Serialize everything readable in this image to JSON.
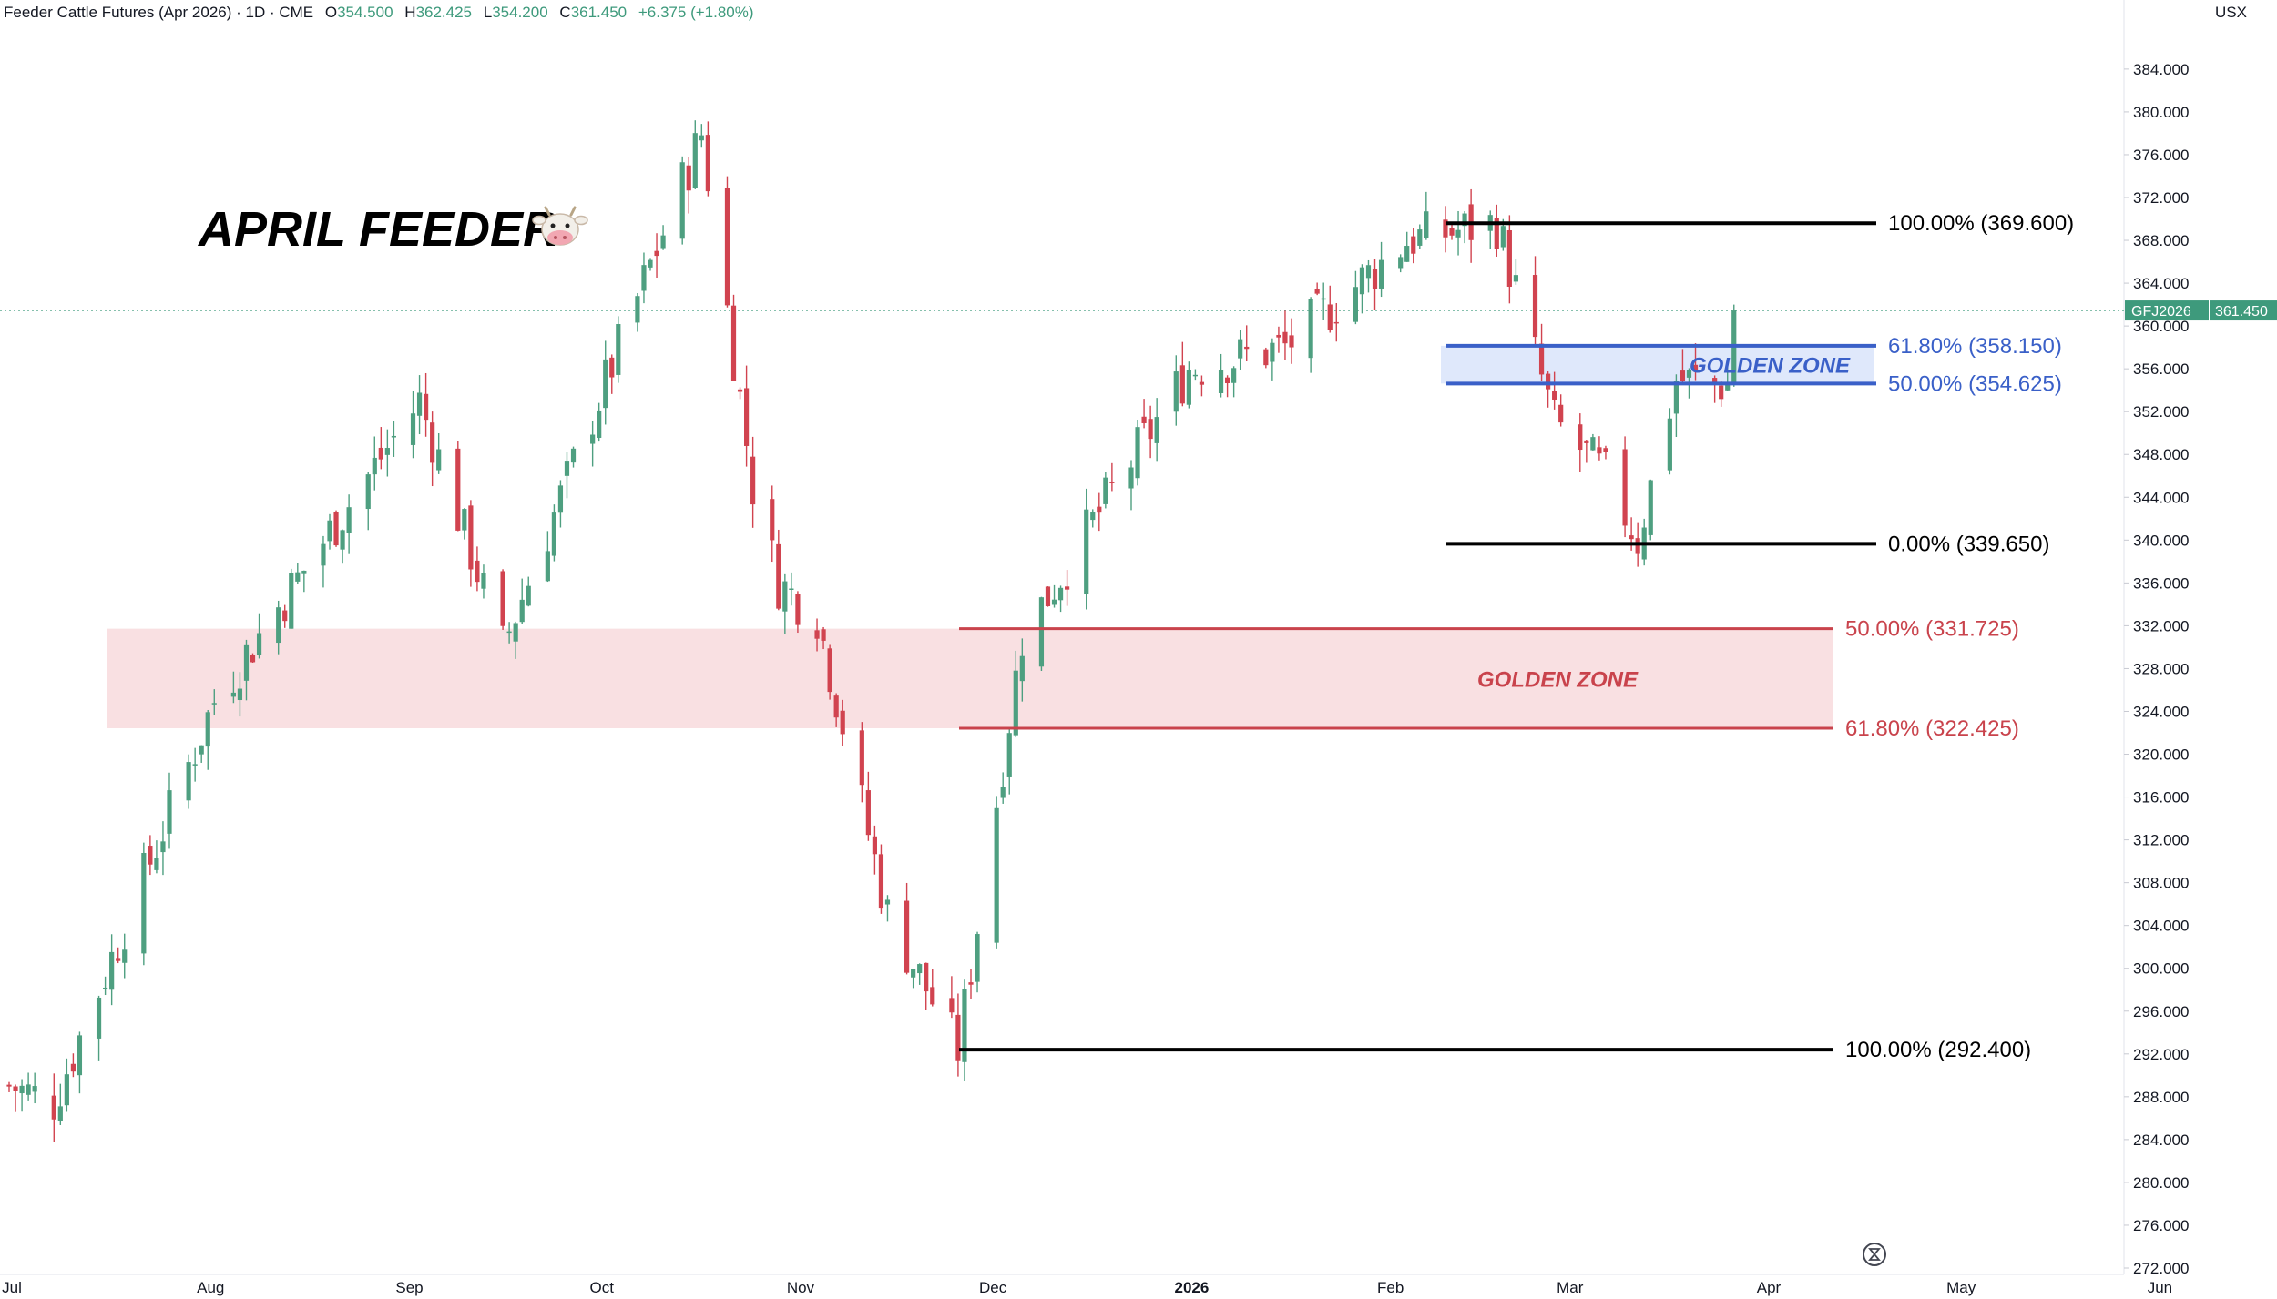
{
  "header": {
    "symbol_text": "Feeder Cattle Futures (Apr 2026) · 1D · CME",
    "open_label": "O",
    "open_value": "354.500",
    "high_label": "H",
    "high_value": "362.425",
    "low_label": "L",
    "low_value": "354.200",
    "close_label": "C",
    "close_value": "361.450",
    "change": "+6.375 (+1.80%)",
    "currency": "USX"
  },
  "annotation_title": "APRIL FEEDER",
  "annotation_emoji": "cow-face-icon",
  "price_tag": {
    "symbol": "GFJ2026",
    "price": "361.450"
  },
  "colors": {
    "up": "#4e9f80",
    "down": "#d1434f",
    "black_line": "#000000",
    "blue_fib": "#3a60c8",
    "blue_fill": "#dfe8fb",
    "red_fib": "#c9434c",
    "red_fill": "#f9e0e2",
    "tag": "#3e9a7c"
  },
  "chart_data": {
    "type": "candlestick",
    "y_axis": {
      "min": 272,
      "max": 386,
      "ticks": [
        "384.000",
        "380.000",
        "376.000",
        "372.000",
        "368.000",
        "364.000",
        "360.000",
        "356.000",
        "352.000",
        "348.000",
        "344.000",
        "340.000",
        "336.000",
        "332.000",
        "328.000",
        "324.000",
        "320.000",
        "316.000",
        "312.000",
        "308.000",
        "304.000",
        "300.000",
        "296.000",
        "292.000",
        "288.000",
        "284.000",
        "280.000",
        "276.000",
        "272.000"
      ],
      "tick_values": [
        384,
        380,
        376,
        372,
        368,
        364,
        360,
        356,
        352,
        348,
        344,
        340,
        336,
        332,
        328,
        324,
        320,
        316,
        312,
        308,
        304,
        300,
        296,
        292,
        288,
        284,
        280,
        276,
        272
      ]
    },
    "x_axis": {
      "labels": [
        "Jul",
        "Aug",
        "Sep",
        "Oct",
        "Nov",
        "Dec",
        "2026",
        "Feb",
        "Mar",
        "Apr",
        "May",
        "Jun"
      ]
    },
    "last_price": 361.45,
    "key_points": [
      {
        "date": "2025-06-30",
        "approx_close": 289
      },
      {
        "date": "2025-07-07",
        "approx_close": 287.5
      },
      {
        "date": "2025-08-01",
        "approx_close": 325
      },
      {
        "date": "2025-09-02",
        "approx_close": 353
      },
      {
        "date": "2025-09-15",
        "approx_close": 330
      },
      {
        "date": "2025-10-16",
        "approx_close": 378
      },
      {
        "date": "2025-10-24",
        "approx_close": 345
      },
      {
        "date": "2025-10-28",
        "approx_close": 336
      },
      {
        "date": "2025-11-03",
        "approx_close": 333
      },
      {
        "date": "2025-11-14",
        "approx_close": 305
      },
      {
        "date": "2025-11-25",
        "approx_close": 292.4
      },
      {
        "date": "2025-12-05",
        "approx_close": 331
      },
      {
        "date": "2025-12-31",
        "approx_close": 356
      },
      {
        "date": "2026-01-15",
        "approx_close": 358
      },
      {
        "date": "2026-02-03",
        "approx_close": 368
      },
      {
        "date": "2026-02-17",
        "approx_close": 369.6
      },
      {
        "date": "2026-02-26",
        "approx_close": 351
      },
      {
        "date": "2026-03-06",
        "approx_close": 346
      },
      {
        "date": "2026-03-11",
        "approx_close": 340
      },
      {
        "date": "2026-03-17",
        "approx_close": 355
      },
      {
        "date": "2026-03-25",
        "approx_close": 354.5
      },
      {
        "date": "2026-03-26",
        "approx_close": 361.45
      }
    ],
    "fib_upper": {
      "levels": [
        {
          "label": "100.00% (369.600)",
          "value": 369.6
        },
        {
          "label": "61.80% (358.150)",
          "value": 358.15
        },
        {
          "label": "50.00% (354.625)",
          "value": 354.625
        },
        {
          "label": "0.00% (339.650)",
          "value": 339.65
        }
      ],
      "zone_label": "GOLDEN ZONE"
    },
    "fib_lower": {
      "levels": [
        {
          "label": "50.00% (331.725)",
          "value": 331.725
        },
        {
          "label": "61.80% (322.425)",
          "value": 322.425
        },
        {
          "label": "100.00% (292.400)",
          "value": 292.4
        }
      ],
      "zone_label": "GOLDEN ZONE"
    }
  }
}
